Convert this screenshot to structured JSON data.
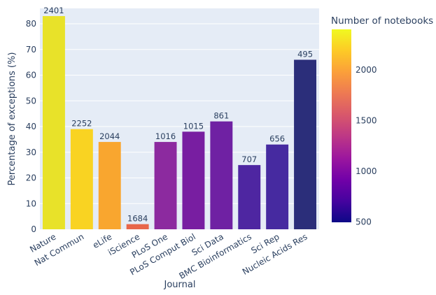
{
  "chart_data": {
    "type": "bar",
    "xlabel": "Journal",
    "ylabel": "Percentage of exceptions (%)",
    "ylim": [
      0,
      86
    ],
    "yticks": [
      0,
      10,
      20,
      30,
      40,
      50,
      60,
      70,
      80
    ],
    "categories": [
      "Nature",
      "Nat Commun",
      "eLife",
      "iScience",
      "PLoS One",
      "PLoS Comput Biol",
      "Sci Data",
      "BMC Bioinformatics",
      "Sci Rep",
      "Nucleic Acids Res"
    ],
    "values": [
      83,
      39,
      34,
      2,
      34,
      38,
      42,
      25,
      33,
      66
    ],
    "labels": [
      "2401",
      "2252",
      "2044",
      "1684",
      "1016",
      "1015",
      "861",
      "707",
      "656",
      "495"
    ],
    "colors": [
      "#e8e229",
      "#f9d322",
      "#f9a62f",
      "#e8664a",
      "#8c2a9f",
      "#781ea1",
      "#6f21a3",
      "#4e26a1",
      "#462aa0",
      "#2b2e7a"
    ],
    "colorbar": {
      "title": "Number of notebooks",
      "range": [
        495,
        2401
      ],
      "ticks": [
        500,
        1000,
        1500,
        2000
      ],
      "tick_labels": [
        "500",
        "1000",
        "1500",
        "2000"
      ],
      "colorscale": [
        "#0d0887",
        "#46039f",
        "#7201a8",
        "#9c179e",
        "#bd3786",
        "#d8576b",
        "#ed7953",
        "#fb9f3a",
        "#fdca26",
        "#f0f921"
      ]
    }
  }
}
